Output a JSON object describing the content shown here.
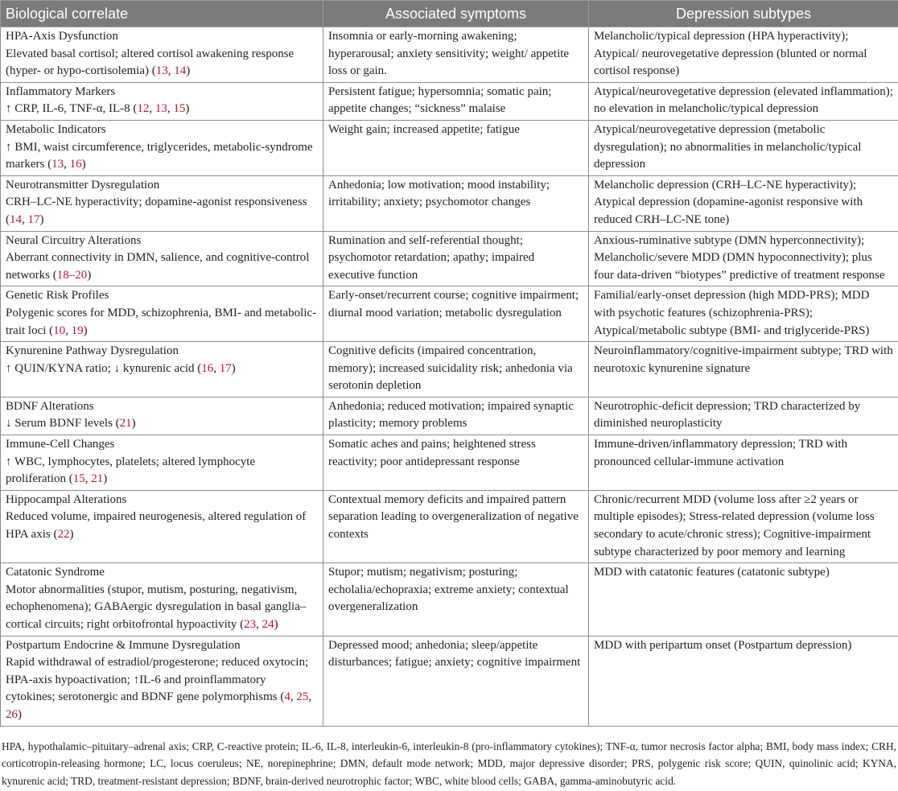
{
  "table": {
    "headers": [
      "Biological correlate",
      "Associated symptoms",
      "Depression subtypes"
    ],
    "rows": [
      {
        "title": "HPA-Axis Dysfunction",
        "description": "Elevated basal cortisol; altered cortisol awakening response (hyper- or hypo-cortisolemia)",
        "refs": [
          "13",
          "14"
        ],
        "symptoms": "Insomnia or early-morning awakening; hyperarousal; anxiety sensitivity; weight/ appetite loss or gain.",
        "subtypes": "Melancholic/typical depression (HPA hyperactivity); Atypical/ neurovegetative depression (blunted or normal cortisol response)"
      },
      {
        "title": "Inflammatory Markers",
        "description": "↑ CRP, IL-6, TNF-α, IL-8",
        "refs": [
          "12",
          "13",
          "15"
        ],
        "symptoms": "Persistent fatigue; hypersomnia; somatic pain; appetite changes; “sickness” malaise",
        "subtypes": "Atypical/neurovegetative depression (elevated inflammation); no elevation in melancholic/typical depression"
      },
      {
        "title": "Metabolic Indicators",
        "description": "↑ BMI, waist circumference, triglycerides, metabolic-syndrome markers",
        "refs": [
          "13",
          "16"
        ],
        "symptoms": "Weight gain; increased appetite; fatigue",
        "subtypes": "Atypical/neurovegetative depression (metabolic dysregulation); no abnormalities in melancholic/typical depression"
      },
      {
        "title": "Neurotransmitter Dysregulation",
        "description": "CRH–LC-NE hyperactivity; dopamine-agonist responsiveness",
        "refs": [
          "14",
          "17"
        ],
        "symptoms": "Anhedonia; low motivation; mood instability; irritability; anxiety; psychomotor changes",
        "subtypes": "Melancholic depression (CRH–LC-NE hyperactivity); Atypical depression (dopamine-agonist responsive with reduced CRH–LC-NE tone)"
      },
      {
        "title": "Neural Circuitry Alterations",
        "description": "Aberrant connectivity in DMN, salience, and cognitive-control networks",
        "refs": [
          "18–20"
        ],
        "symptoms": "Rumination and self-referential thought; psychomotor retardation; apathy; impaired executive function",
        "subtypes": "Anxious-ruminative subtype (DMN hyperconnectivity); Melancholic/severe MDD (DMN hypoconnectivity); plus four data-driven “biotypes” predictive of treatment response"
      },
      {
        "title": "Genetic Risk Profiles",
        "description": "Polygenic scores for MDD, schizophrenia, BMI- and metabolic-trait loci",
        "refs": [
          "10",
          "19"
        ],
        "symptoms": "Early-onset/recurrent course; cognitive impairment; diurnal mood variation; metabolic dysregulation",
        "subtypes": "Familial/early-onset depression (high MDD-PRS); MDD with psychotic features (schizophrenia-PRS); Atypical/metabolic subtype (BMI- and triglyceride-PRS)"
      },
      {
        "title": "Kynurenine Pathway Dysregulation",
        "description": "↑ QUIN/KYNA ratio; ↓ kynurenic acid",
        "refs": [
          "16",
          "17"
        ],
        "symptoms": "Cognitive deficits (impaired concentration, memory); increased suicidality risk; anhedonia via serotonin depletion",
        "subtypes": "Neuroinflammatory/cognitive-impairment subtype; TRD with neurotoxic kynurenine signature"
      },
      {
        "title": "BDNF Alterations",
        "description": "↓ Serum BDNF levels",
        "refs": [
          "21"
        ],
        "symptoms": "Anhedonia; reduced motivation; impaired synaptic plasticity; memory problems",
        "subtypes": "Neurotrophic-deficit depression; TRD characterized by diminished neuroplasticity"
      },
      {
        "title": "Immune-Cell Changes",
        "description": "↑ WBC, lymphocytes, platelets; altered lymphocyte proliferation",
        "refs": [
          "15",
          "21"
        ],
        "symptoms": "Somatic aches and pains; heightened stress reactivity; poor antidepressant response",
        "subtypes": "Immune-driven/inflammatory depression; TRD with pronounced cellular-immune activation"
      },
      {
        "title": "Hippocampal Alterations",
        "description": "Reduced volume, impaired neurogenesis, altered regulation of HPA axis",
        "refs": [
          "22"
        ],
        "symptoms": "Contextual memory deficits and impaired pattern separation leading to overgeneralization of negative contexts",
        "subtypes": "Chronic/recurrent MDD (volume loss after ≥2 years or multiple episodes); Stress-related depression (volume loss secondary to acute/chronic stress); Cognitive-impairment subtype characterized by poor memory and learning"
      },
      {
        "title": "Catatonic Syndrome",
        "description": "Motor abnormalities (stupor, mutism, posturing, negativism, echophenomena); GABAergic dysregulation in basal ganglia–cortical circuits; right orbitofrontal hypoactivity",
        "refs": [
          "23",
          "24"
        ],
        "symptoms": "Stupor; mutism; negativism; posturing; echolalia/echopraxia; extreme anxiety; contextual overgeneralization",
        "subtypes": "MDD with catatonic features (catatonic subtype)"
      },
      {
        "title": "Postpartum Endocrine & Immune Dysregulation",
        "description": " Rapid withdrawal of estradiol/progesterone; reduced oxytocin; HPA-axis hypoactivation; ↑IL-6 and proinflammatory cytokines; serotonergic and BDNF gene polymorphisms",
        "refs": [
          "4",
          "25",
          "26"
        ],
        "symptoms": "Depressed mood; anhedonia; sleep/appetite disturbances; fatigue; anxiety; cognitive impairment",
        "subtypes": "MDD with peripartum onset (Postpartum depression)"
      }
    ],
    "footnote": "HPA, hypothalamic–pituitary–adrenal axis; CRP, C-reactive protein; IL-6, IL-8, interleukin-6, interleukin-8 (pro-inflammatory cytokines); TNF-α, tumor necrosis factor alpha; BMI, body mass index; CRH, corticotropin-releasing hormone; LC, locus coeruleus; NE, norepinephrine; DMN, default mode network; MDD, major depressive disorder; PRS, polygenic risk score; QUIN, quinolinic acid; KYNA, kynurenic acid; TRD, treatment-resistant depression; BDNF, brain-derived neurotrophic factor; WBC, white blood cells; GABA, gamma-aminobutyric acid."
  },
  "colors": {
    "header_bg": "#7b7b7b",
    "reference_link": "#b01c2e",
    "border": "#8c8c8c"
  }
}
